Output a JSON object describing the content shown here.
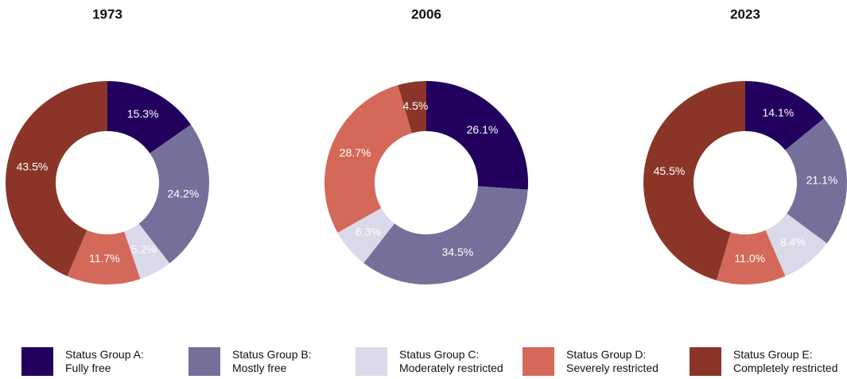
{
  "chart_data": [
    {
      "type": "donut",
      "title": "1973",
      "values": [
        15.3,
        24.2,
        5.2,
        11.7,
        43.5
      ],
      "value_labels": [
        "15.3%",
        "24.2%",
        "5.2%",
        "11.7%",
        "43.5%"
      ]
    },
    {
      "type": "donut",
      "title": "2006",
      "values": [
        26.1,
        34.5,
        6.3,
        28.7,
        4.5
      ],
      "value_labels": [
        "26.1%",
        "34.5%",
        "6.3%",
        "28.7%",
        "4.5%"
      ]
    },
    {
      "type": "donut",
      "title": "2023",
      "values": [
        14.1,
        21.1,
        8.4,
        11.0,
        45.5
      ],
      "value_labels": [
        "14.1%",
        "21.1%",
        "8.4%",
        "11.0%",
        "45.5%"
      ]
    }
  ],
  "legend": {
    "labels": [
      "Status Group A:\nFully free",
      "Status Group B:\nMostly free",
      "Status Group C:\nModerately restricted",
      "Status Group D:\nSeverely restricted",
      "Status Group E:\nCompletely restricted"
    ],
    "colors": [
      "#21005e",
      "#74709a",
      "#d9d9ea",
      "#d4695a",
      "#8b3528"
    ]
  }
}
